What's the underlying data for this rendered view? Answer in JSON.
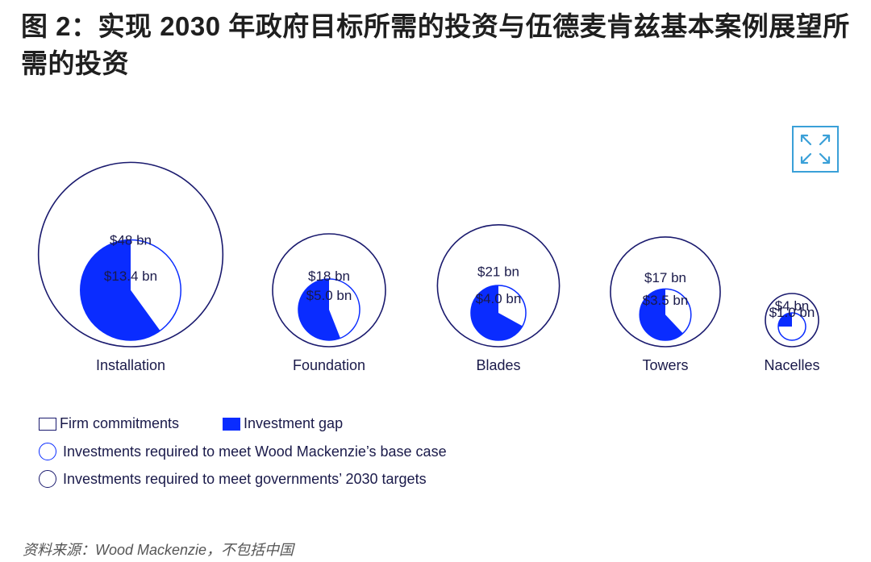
{
  "title": "图 2：实现 2030 年政府目标所需的投资与伍德麦肯兹基本案例展望所需的投资",
  "source": "资料来源：Wood Mackenzie，不包括中国",
  "colors": {
    "navy": "#1a1a6e",
    "blue": "#0a2cff",
    "legend_text": "#1a1a4a",
    "expand_border": "#3aa0d8"
  },
  "expand_icon": "expand-arrows-icon",
  "chart_data": {
    "type": "nested-bubble-pie",
    "unit": "$ bn",
    "categories": [
      "Installation",
      "Foundation",
      "Blades",
      "Towers",
      "Nacelles"
    ],
    "government_targets": [
      48,
      18,
      21,
      17,
      4
    ],
    "government_labels": [
      "$48 bn",
      "$18 bn",
      "$21 bn",
      "$17 bn",
      "$4 bn"
    ],
    "base_case": [
      13.4,
      5.0,
      4.0,
      3.5,
      1.0
    ],
    "base_case_labels": [
      "$13.4 bn",
      "$5.0 bn",
      "$4.0 bn",
      "$3.5 bn",
      "$1.0 bn"
    ],
    "investment_gap_share": [
      0.6,
      0.56,
      0.67,
      0.62,
      0.25
    ],
    "legend": [
      "Firm commitments",
      "Investment gap",
      "Investments required to meet Wood Mackenzie’s base case",
      "Investments required to meet governments’ 2030 targets"
    ]
  }
}
